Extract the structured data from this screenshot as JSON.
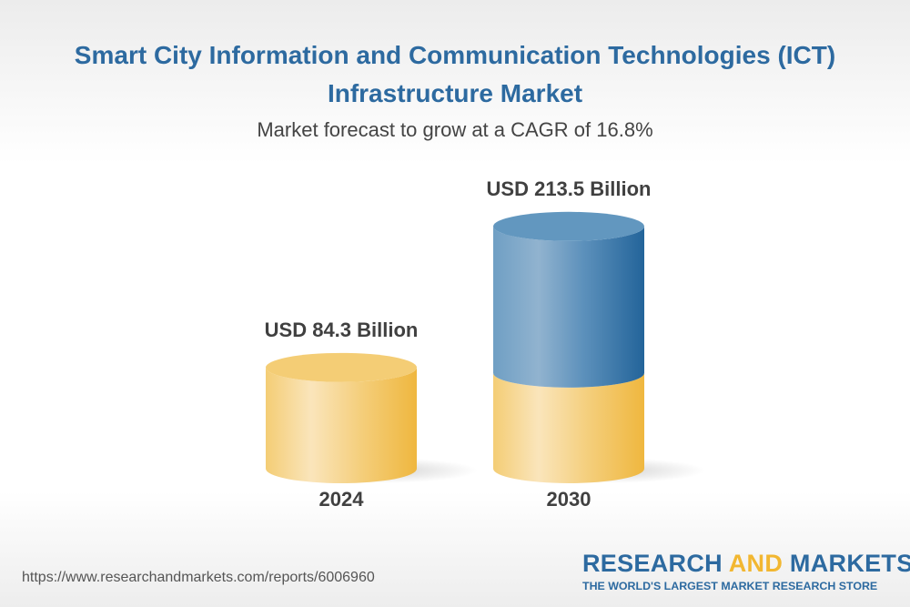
{
  "title": "Smart City Information and Communication Technologies (ICT) Infrastructure Market",
  "subtitle": "Market forecast to grow at a CAGR of 16.8%",
  "chart_data": {
    "type": "bar",
    "style": "3d-cylinder",
    "categories": [
      "2024",
      "2030"
    ],
    "values": [
      84.3,
      213.5
    ],
    "data_labels": [
      "USD 84.3 Billion",
      "USD 213.5 Billion"
    ],
    "unit": "USD Billion",
    "cagr": "16.8%",
    "colors": {
      "base": "#f2c45e",
      "growth": "#2d6aa0"
    }
  },
  "footer": {
    "url": "https://www.researchandmarkets.com/reports/6006960",
    "logo_part1": "RESEARCH ",
    "logo_part2": "AND",
    "logo_part3": " MARKETS",
    "logo_tagline": "THE WORLD'S LARGEST MARKET RESEARCH STORE"
  }
}
